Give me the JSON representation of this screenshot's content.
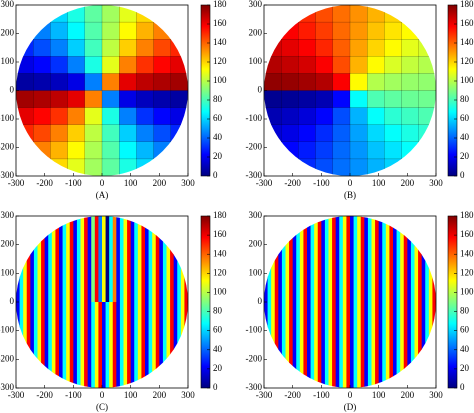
{
  "chart_data": [
    {
      "type": "heatmap",
      "label": "(A)",
      "colormap": "jet",
      "x": [
        -270,
        -210,
        -150,
        -90,
        -30,
        30,
        90,
        150,
        210,
        270
      ],
      "y": [
        270,
        210,
        150,
        90,
        30,
        -30,
        -90,
        -150,
        -210,
        -270
      ],
      "values": [
        [
          null,
          null,
          61,
          72,
          84,
          96,
          108,
          119,
          null,
          null
        ],
        [
          null,
          45,
          55,
          67,
          82,
          98,
          113,
          126,
          135,
          null
        ],
        [
          29,
          36,
          45,
          59,
          79,
          101,
          121,
          135,
          145,
          151
        ],
        [
          18,
          23,
          31,
          45,
          72,
          108,
          135,
          149,
          157,
          162
        ],
        [
          6,
          8,
          11,
          18,
          45,
          135,
          162,
          169,
          172,
          174
        ],
        [
          174,
          172,
          169,
          162,
          135,
          45,
          18,
          11,
          8,
          6
        ],
        [
          162,
          157,
          149,
          135,
          108,
          72,
          45,
          31,
          23,
          18
        ],
        [
          151,
          145,
          135,
          121,
          101,
          79,
          59,
          45,
          36,
          29
        ],
        [
          null,
          135,
          126,
          113,
          98,
          82,
          67,
          55,
          45,
          null
        ],
        [
          null,
          null,
          119,
          108,
          96,
          84,
          72,
          61,
          null,
          null
        ]
      ],
      "xlim": [
        -300,
        300
      ],
      "ylim": [
        -300,
        300
      ],
      "xticks": [
        -300,
        -200,
        -100,
        0,
        100,
        200,
        300
      ],
      "yticks": [
        -300,
        -200,
        -100,
        0,
        100,
        200,
        300
      ],
      "clim": [
        0,
        180
      ],
      "cticks": [
        0,
        20,
        40,
        60,
        80,
        100,
        120,
        140,
        160,
        180
      ]
    },
    {
      "type": "heatmap",
      "label": "(B)",
      "colormap": "jet",
      "x": [
        -270,
        -210,
        -150,
        -90,
        -30,
        30,
        90,
        150,
        210,
        270
      ],
      "y": [
        270,
        210,
        150,
        90,
        30,
        -30,
        -90,
        -150,
        -210,
        -270
      ],
      "values": [
        [
          null,
          null,
          150,
          144,
          138,
          132,
          126,
          120,
          null,
          null
        ],
        [
          null,
          158,
          153,
          147,
          139,
          131,
          123,
          117,
          113,
          null
        ],
        [
          165,
          162,
          158,
          151,
          141,
          129,
          120,
          113,
          108,
          105
        ],
        [
          171,
          168,
          165,
          158,
          144,
          126,
          113,
          106,
          102,
          99
        ],
        [
          177,
          176,
          174,
          171,
          158,
          113,
          99,
          96,
          94,
          93
        ],
        [
          3,
          4,
          6,
          9,
          23,
          68,
          81,
          84,
          86,
          87
        ],
        [
          9,
          12,
          16,
          23,
          36,
          54,
          68,
          75,
          78,
          81
        ],
        [
          15,
          18,
          23,
          30,
          39,
          51,
          61,
          68,
          72,
          75
        ],
        [
          null,
          23,
          27,
          33,
          41,
          49,
          57,
          63,
          68,
          null
        ],
        [
          null,
          null,
          30,
          36,
          42,
          48,
          54,
          60,
          null,
          null
        ]
      ],
      "xlim": [
        -300,
        300
      ],
      "ylim": [
        -300,
        300
      ],
      "xticks": [
        -300,
        -200,
        -100,
        0,
        100,
        200,
        300
      ],
      "yticks": [
        -300,
        -200,
        -100,
        0,
        100,
        200,
        300
      ],
      "clim": [
        0,
        180
      ],
      "cticks": [
        0,
        20,
        40,
        60,
        80,
        100,
        120,
        140,
        160,
        180
      ]
    },
    {
      "type": "heatmap",
      "label": "(C)",
      "colormap": "jet",
      "x": [
        -293.75,
        -281.25,
        -268.75,
        -256.25,
        -243.75,
        -231.25,
        -218.75,
        -206.25,
        -193.75,
        -181.25,
        -168.75,
        -156.25,
        -143.75,
        -131.25,
        -118.75,
        -106.25,
        -93.75,
        -81.25,
        -68.75,
        -56.25,
        -43.75,
        -31.25,
        -18.75,
        -6.25,
        6.25,
        18.75,
        31.25,
        43.75,
        56.25,
        68.75,
        81.25,
        93.75,
        106.25,
        118.75,
        131.25,
        143.75,
        156.25,
        168.75,
        181.25,
        193.75,
        206.25,
        218.75,
        231.25,
        243.75,
        256.25,
        268.75,
        281.25,
        293.75
      ],
      "y": [
        150,
        -150
      ],
      "values": [
        [
          22,
          68,
          112,
          158,
          22,
          68,
          112,
          158,
          22,
          68,
          112,
          158,
          22,
          68,
          112,
          158,
          22,
          68,
          112,
          158,
          22,
          90,
          158,
          45,
          112,
          0,
          68,
          135,
          22,
          68,
          112,
          158,
          22,
          68,
          112,
          158,
          22,
          68,
          112,
          158,
          22,
          68,
          112,
          158,
          22,
          68,
          112,
          158
        ],
        [
          22,
          68,
          112,
          158,
          22,
          68,
          112,
          158,
          22,
          68,
          112,
          158,
          22,
          68,
          112,
          158,
          22,
          68,
          112,
          158,
          22,
          68,
          112,
          158,
          22,
          68,
          112,
          158,
          22,
          68,
          112,
          158,
          22,
          68,
          112,
          158,
          22,
          68,
          112,
          158,
          22,
          68,
          112,
          158,
          22,
          68,
          112,
          158
        ]
      ],
      "xlim": [
        -300,
        300
      ],
      "ylim": [
        -300,
        300
      ],
      "xticks": [
        -300,
        -200,
        -100,
        0,
        100,
        200,
        300
      ],
      "yticks": [
        -300,
        -200,
        -100,
        0,
        100,
        200,
        300
      ],
      "clim": [
        0,
        180
      ],
      "cticks": [
        0,
        20,
        40,
        60,
        80,
        100,
        120,
        140,
        160,
        180
      ]
    },
    {
      "type": "heatmap",
      "label": "(D)",
      "colormap": "jet",
      "x": [
        -293.75,
        -281.25,
        -268.75,
        -256.25,
        -243.75,
        -231.25,
        -218.75,
        -206.25,
        -193.75,
        -181.25,
        -168.75,
        -156.25,
        -143.75,
        -131.25,
        -118.75,
        -106.25,
        -93.75,
        -81.25,
        -68.75,
        -56.25,
        -43.75,
        -31.25,
        -18.75,
        -6.25,
        6.25,
        18.75,
        31.25,
        43.75,
        56.25,
        68.75,
        81.25,
        93.75,
        106.25,
        118.75,
        131.25,
        143.75,
        156.25,
        168.75,
        181.25,
        193.75,
        206.25,
        218.75,
        231.25,
        243.75,
        256.25,
        268.75,
        281.25,
        293.75
      ],
      "y": [
        150,
        -150
      ],
      "values": [
        [
          22,
          68,
          112,
          158,
          22,
          68,
          112,
          158,
          22,
          68,
          112,
          158,
          22,
          68,
          112,
          158,
          22,
          68,
          112,
          158,
          22,
          68,
          112,
          158,
          22,
          68,
          112,
          158,
          22,
          68,
          112,
          158,
          22,
          68,
          112,
          158,
          22,
          68,
          112,
          158,
          22,
          68,
          112,
          158,
          22,
          68,
          112,
          158
        ],
        [
          22,
          68,
          112,
          158,
          22,
          68,
          112,
          158,
          22,
          68,
          112,
          158,
          22,
          68,
          112,
          158,
          22,
          68,
          112,
          158,
          22,
          68,
          112,
          158,
          22,
          68,
          112,
          158,
          22,
          68,
          112,
          158,
          22,
          68,
          112,
          158,
          22,
          68,
          112,
          158,
          22,
          68,
          112,
          158,
          22,
          68,
          112,
          158
        ]
      ],
      "xlim": [
        -300,
        300
      ],
      "ylim": [
        -300,
        300
      ],
      "xticks": [
        -300,
        -200,
        -100,
        0,
        100,
        200,
        300
      ],
      "yticks": [
        -300,
        -200,
        -100,
        0,
        100,
        200,
        300
      ],
      "clim": [
        0,
        180
      ],
      "cticks": [
        0,
        20,
        40,
        60,
        80,
        100,
        120,
        140,
        160,
        180
      ]
    }
  ]
}
